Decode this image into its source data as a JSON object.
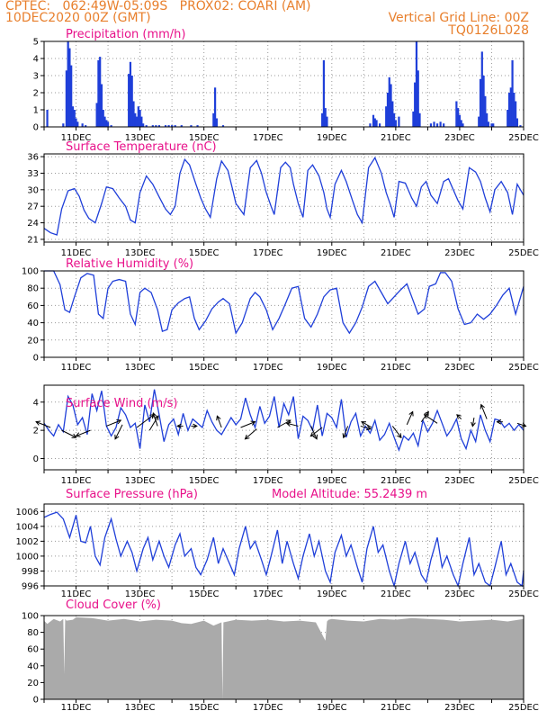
{
  "header": {
    "line1": "CPTEC:   062:49W-05:09S   PROX02: COARI (AM)",
    "line2": "10DEC2020 00Z (GMT)",
    "right1": "Vertical Grid Line: 00Z",
    "right2": "TQ0126L028"
  },
  "colors": {
    "header": "#e87f2c",
    "title": "#e8118a",
    "line": "#1f3fd9",
    "bar": "#1f3fd9",
    "cloud": "#aaaaaa",
    "grid": "#999999"
  },
  "x_ticks": [
    "11DEC",
    "13DEC",
    "15DEC",
    "17DEC",
    "19DEC",
    "21DEC",
    "23DEC",
    "25DEC"
  ],
  "chart_data": [
    {
      "id": "precip",
      "type": "bar",
      "title": "Precipitation (mm/h)",
      "ylim": [
        0,
        5
      ],
      "yticks": [
        0,
        1,
        2,
        3,
        4,
        5
      ],
      "grid": true,
      "x": [
        10.1,
        10.6,
        10.7,
        10.75,
        10.8,
        10.85,
        10.9,
        10.95,
        11.0,
        11.05,
        11.2,
        11.3,
        11.65,
        11.7,
        11.75,
        11.8,
        11.85,
        11.9,
        11.95,
        12.0,
        12.1,
        12.65,
        12.7,
        12.75,
        12.8,
        12.85,
        12.9,
        12.95,
        13.0,
        13.05,
        13.1,
        13.2,
        13.4,
        13.5,
        13.6,
        13.8,
        13.9,
        14.0,
        14.1,
        14.3,
        14.6,
        14.8,
        15.3,
        15.35,
        15.4,
        15.6,
        18.7,
        18.75,
        18.8,
        18.85,
        20.2,
        20.3,
        20.35,
        20.4,
        20.5,
        20.7,
        20.75,
        20.8,
        20.85,
        20.9,
        20.95,
        21.0,
        21.1,
        21.55,
        21.6,
        21.65,
        21.7,
        21.75,
        22.1,
        22.2,
        22.3,
        22.4,
        22.5,
        22.9,
        22.95,
        23.0,
        23.05,
        23.1,
        23.6,
        23.65,
        23.7,
        23.75,
        23.8,
        23.85,
        23.9,
        24.0,
        24.05,
        24.5,
        24.55,
        24.6,
        24.65,
        24.7,
        24.75,
        24.8,
        24.9
      ],
      "values": [
        1.0,
        0.2,
        3.3,
        5.0,
        4.6,
        3.6,
        1.2,
        1.0,
        0.5,
        0.3,
        0.2,
        0.1,
        1.4,
        3.9,
        4.1,
        2.5,
        1.0,
        0.6,
        0.4,
        0.3,
        0.1,
        3.1,
        3.8,
        3.0,
        1.5,
        0.8,
        0.6,
        1.2,
        1.0,
        0.6,
        0.2,
        0.1,
        0.1,
        0.1,
        0.1,
        0.1,
        0.1,
        0.1,
        0.1,
        0.1,
        0.1,
        0.1,
        0.8,
        2.3,
        0.5,
        0.1,
        0.8,
        3.9,
        1.1,
        0.6,
        0.2,
        0.7,
        0.5,
        0.4,
        0.2,
        1.2,
        2.0,
        2.9,
        2.5,
        1.5,
        0.8,
        0.4,
        0.6,
        0.9,
        2.6,
        5.0,
        3.3,
        0.8,
        0.2,
        0.3,
        0.2,
        0.3,
        0.2,
        1.5,
        1.1,
        0.7,
        0.4,
        0.2,
        0.6,
        2.8,
        4.4,
        3.0,
        1.8,
        0.8,
        0.3,
        0.2,
        0.2,
        1.0,
        2.0,
        2.3,
        3.9,
        2.0,
        1.5,
        0.5,
        0.1
      ]
    },
    {
      "id": "temp",
      "type": "line",
      "title": "Surface Temperature (nC)",
      "ylim": [
        20.5,
        36.5
      ],
      "yticks": [
        21,
        24,
        27,
        30,
        33,
        36
      ],
      "grid": true,
      "x": [
        10.0,
        10.2,
        10.4,
        10.55,
        10.75,
        10.95,
        11.1,
        11.25,
        11.4,
        11.6,
        11.8,
        11.95,
        12.15,
        12.35,
        12.55,
        12.7,
        12.85,
        13.0,
        13.2,
        13.4,
        13.6,
        13.8,
        13.95,
        14.1,
        14.25,
        14.4,
        14.55,
        14.75,
        14.9,
        15.05,
        15.2,
        15.4,
        15.55,
        15.75,
        15.9,
        16.0,
        16.25,
        16.45,
        16.65,
        16.8,
        16.95,
        17.1,
        17.2,
        17.4,
        17.55,
        17.7,
        17.8,
        17.95,
        18.1,
        18.25,
        18.4,
        18.6,
        18.75,
        18.85,
        18.95,
        19.1,
        19.3,
        19.45,
        19.65,
        19.8,
        19.95,
        20.15,
        20.35,
        20.55,
        20.7,
        20.85,
        20.95,
        21.1,
        21.3,
        21.5,
        21.65,
        21.8,
        21.95,
        22.1,
        22.3,
        22.5,
        22.65,
        22.8,
        22.95,
        23.1,
        23.3,
        23.5,
        23.65,
        23.8,
        23.95,
        24.1,
        24.3,
        24.5,
        24.65,
        24.8,
        25.0
      ],
      "values": [
        23.0,
        22.2,
        21.8,
        26.5,
        29.8,
        30.2,
        28.8,
        26.3,
        24.8,
        24.0,
        27.5,
        30.5,
        30.2,
        28.5,
        27.0,
        24.5,
        24.0,
        29.5,
        32.5,
        31.0,
        28.7,
        26.5,
        25.5,
        27.0,
        33.0,
        35.5,
        34.5,
        31.0,
        28.5,
        26.5,
        25.0,
        32.0,
        35.2,
        33.5,
        30.0,
        27.5,
        25.5,
        34.0,
        35.3,
        33.0,
        29.5,
        27.0,
        25.5,
        34.0,
        35.0,
        34.0,
        31.0,
        27.5,
        25.0,
        33.5,
        34.5,
        32.5,
        29.5,
        26.5,
        25.0,
        31.0,
        33.5,
        31.5,
        28.0,
        25.5,
        24.0,
        34.0,
        35.8,
        33.0,
        29.5,
        27.0,
        25.0,
        31.5,
        31.2,
        28.5,
        27.0,
        30.5,
        31.5,
        29.0,
        27.5,
        31.5,
        32.0,
        30.0,
        28.0,
        26.5,
        34.0,
        33.2,
        31.5,
        28.5,
        26.0,
        30.0,
        31.5,
        29.5,
        25.5,
        31.0,
        29.0
      ]
    },
    {
      "id": "rh",
      "type": "line",
      "title": "Relative Humidity (%)",
      "ylim": [
        0,
        100
      ],
      "yticks": [
        0,
        20,
        40,
        60,
        80,
        100
      ],
      "grid": true,
      "x": [
        10.0,
        10.3,
        10.5,
        10.65,
        10.8,
        10.95,
        11.15,
        11.35,
        11.55,
        11.7,
        11.85,
        12.0,
        12.15,
        12.35,
        12.55,
        12.7,
        12.85,
        13.0,
        13.15,
        13.35,
        13.55,
        13.7,
        13.85,
        14.0,
        14.2,
        14.4,
        14.55,
        14.7,
        14.85,
        15.05,
        15.25,
        15.45,
        15.6,
        15.8,
        16.0,
        16.2,
        16.45,
        16.6,
        16.75,
        16.95,
        17.15,
        17.35,
        17.55,
        17.75,
        17.95,
        18.15,
        18.35,
        18.55,
        18.75,
        18.95,
        19.15,
        19.35,
        19.55,
        19.75,
        19.95,
        20.15,
        20.35,
        20.55,
        20.75,
        20.95,
        21.15,
        21.35,
        21.5,
        21.7,
        21.9,
        22.05,
        22.25,
        22.4,
        22.55,
        22.75,
        22.95,
        23.15,
        23.35,
        23.55,
        23.75,
        23.95,
        24.15,
        24.35,
        24.55,
        24.75,
        25.0
      ],
      "values": [
        100,
        100,
        84,
        55,
        52,
        70,
        92,
        97,
        95,
        50,
        45,
        80,
        88,
        90,
        88,
        50,
        38,
        75,
        80,
        75,
        55,
        30,
        32,
        55,
        63,
        68,
        70,
        45,
        32,
        42,
        56,
        64,
        68,
        62,
        28,
        40,
        68,
        75,
        70,
        55,
        32,
        45,
        62,
        80,
        82,
        45,
        35,
        50,
        70,
        78,
        80,
        40,
        28,
        40,
        58,
        82,
        88,
        75,
        62,
        70,
        78,
        85,
        70,
        50,
        56,
        82,
        85,
        98,
        98,
        88,
        56,
        38,
        40,
        50,
        44,
        50,
        60,
        72,
        80,
        50,
        82
      ]
    },
    {
      "id": "wind",
      "type": "line",
      "title": "Surface Wind (m/s)",
      "ylim": [
        -0.8,
        5.2
      ],
      "yticks": [
        0,
        2,
        4
      ],
      "grid": true,
      "x": [
        10.0,
        10.15,
        10.3,
        10.45,
        10.6,
        10.75,
        10.9,
        11.05,
        11.2,
        11.35,
        11.5,
        11.65,
        11.8,
        11.95,
        12.1,
        12.25,
        12.4,
        12.55,
        12.7,
        12.85,
        13.0,
        13.15,
        13.3,
        13.45,
        13.6,
        13.75,
        13.9,
        14.05,
        14.2,
        14.35,
        14.5,
        14.65,
        14.8,
        14.95,
        15.1,
        15.25,
        15.4,
        15.55,
        15.7,
        15.85,
        16.0,
        16.15,
        16.3,
        16.45,
        16.6,
        16.75,
        16.9,
        17.05,
        17.2,
        17.35,
        17.5,
        17.65,
        17.8,
        17.95,
        18.1,
        18.25,
        18.4,
        18.55,
        18.7,
        18.85,
        19.0,
        19.15,
        19.3,
        19.45,
        19.6,
        19.75,
        19.9,
        20.05,
        20.2,
        20.35,
        20.5,
        20.65,
        20.8,
        20.95,
        21.1,
        21.25,
        21.4,
        21.55,
        21.7,
        21.85,
        22.0,
        22.15,
        22.3,
        22.45,
        22.6,
        22.75,
        22.9,
        23.05,
        23.2,
        23.35,
        23.5,
        23.65,
        23.8,
        23.95,
        24.1,
        24.25,
        24.4,
        24.55,
        24.7,
        24.85,
        25.0
      ],
      "values": [
        2.5,
        2.0,
        1.6,
        2.4,
        1.9,
        4.4,
        3.8,
        2.4,
        2.9,
        1.7,
        4.6,
        3.4,
        4.8,
        2.3,
        1.6,
        2.2,
        3.6,
        3.1,
        2.2,
        2.5,
        0.7,
        3.8,
        2.6,
        4.9,
        3.1,
        1.2,
        2.4,
        2.8,
        1.7,
        3.2,
        2.0,
        2.8,
        2.5,
        2.2,
        3.4,
        2.6,
        2.0,
        1.7,
        2.3,
        2.9,
        2.4,
        2.8,
        4.3,
        3.1,
        2.2,
        3.7,
        2.5,
        3.0,
        4.4,
        2.2,
        3.9,
        3.1,
        4.4,
        1.4,
        3.0,
        2.7,
        2.0,
        3.8,
        1.6,
        3.2,
        2.9,
        2.2,
        4.2,
        1.5,
        2.6,
        3.2,
        1.6,
        2.3,
        1.8,
        2.7,
        1.3,
        1.7,
        2.5,
        1.5,
        0.6,
        1.6,
        1.3,
        1.8,
        0.9,
        2.7,
        1.9,
        2.5,
        3.4,
        2.5,
        1.6,
        2.1,
        2.8,
        1.4,
        0.7,
        2.0,
        1.2,
        3.1,
        2.0,
        1.2,
        2.8,
        2.7,
        2.2,
        2.5,
        2.0,
        2.4,
        2.0
      ],
      "arrows": [
        {
          "x": 10.2,
          "y": 2.2,
          "u": -1.0,
          "v": 0.4
        },
        {
          "x": 10.55,
          "y": 2.0,
          "u": 1.0,
          "v": -0.5
        },
        {
          "x": 11.45,
          "y": 2.0,
          "u": -1.0,
          "v": -0.4
        },
        {
          "x": 11.95,
          "y": 2.3,
          "u": 1.0,
          "v": 0.4
        },
        {
          "x": 12.45,
          "y": 2.4,
          "u": -0.5,
          "v": -1.0
        },
        {
          "x": 12.9,
          "y": 2.2,
          "u": 1.2,
          "v": 0.9
        },
        {
          "x": 13.3,
          "y": 2.0,
          "u": 0.6,
          "v": 1.0
        },
        {
          "x": 13.55,
          "y": 2.3,
          "u": -0.3,
          "v": 0.9
        },
        {
          "x": 14.35,
          "y": 2.3,
          "u": -0.4,
          "v": 0.0
        },
        {
          "x": 14.6,
          "y": 2.3,
          "u": 0.4,
          "v": 0.0
        },
        {
          "x": 15.55,
          "y": 2.2,
          "u": -0.3,
          "v": 0.8
        },
        {
          "x": 16.15,
          "y": 2.2,
          "u": 1.0,
          "v": 0.4
        },
        {
          "x": 16.65,
          "y": 2.1,
          "u": -0.8,
          "v": -0.7
        },
        {
          "x": 17.3,
          "y": 2.2,
          "u": 0.9,
          "v": 0.5
        },
        {
          "x": 17.95,
          "y": 2.3,
          "u": -0.8,
          "v": 0.2
        },
        {
          "x": 18.35,
          "y": 2.3,
          "u": 0.4,
          "v": -0.9
        },
        {
          "x": 18.7,
          "y": 2.2,
          "u": -0.8,
          "v": -0.6
        },
        {
          "x": 19.5,
          "y": 2.3,
          "u": -0.3,
          "v": -0.8
        },
        {
          "x": 19.9,
          "y": 2.3,
          "u": 0.7,
          "v": -0.2
        },
        {
          "x": 20.25,
          "y": 2.2,
          "u": -0.7,
          "v": 0.4
        },
        {
          "x": 20.9,
          "y": 2.3,
          "u": 0.6,
          "v": -0.8
        },
        {
          "x": 21.35,
          "y": 2.4,
          "u": 0.4,
          "v": 0.9
        },
        {
          "x": 21.8,
          "y": 2.6,
          "u": 0.5,
          "v": 0.7
        },
        {
          "x": 22.3,
          "y": 2.5,
          "u": -0.9,
          "v": 0.6
        },
        {
          "x": 23.05,
          "y": 2.8,
          "u": -0.3,
          "v": 0.3
        },
        {
          "x": 23.45,
          "y": 2.9,
          "u": -0.1,
          "v": -0.6
        },
        {
          "x": 23.85,
          "y": 2.8,
          "u": -0.4,
          "v": 1.0
        },
        {
          "x": 24.35,
          "y": 2.6,
          "u": -0.4,
          "v": 0.0
        },
        {
          "x": 24.8,
          "y": 2.5,
          "u": 0.6,
          "v": -0.2
        }
      ]
    },
    {
      "id": "pres",
      "type": "line",
      "title": "Surface Pressure (hPa)",
      "subtitle": "Model Altitude: 55.2439 m",
      "ylim": [
        996,
        1007
      ],
      "yticks": [
        996,
        998,
        1000,
        1002,
        1004,
        1006
      ],
      "grid": true,
      "x": [
        10.0,
        10.2,
        10.4,
        10.6,
        10.8,
        11.0,
        11.15,
        11.3,
        11.45,
        11.6,
        11.75,
        11.9,
        12.1,
        12.25,
        12.4,
        12.6,
        12.75,
        12.9,
        13.1,
        13.25,
        13.4,
        13.6,
        13.75,
        13.9,
        14.1,
        14.25,
        14.4,
        14.6,
        14.75,
        14.9,
        15.1,
        15.3,
        15.45,
        15.6,
        15.8,
        15.95,
        16.1,
        16.3,
        16.45,
        16.6,
        16.8,
        16.95,
        17.1,
        17.3,
        17.45,
        17.6,
        17.8,
        17.95,
        18.1,
        18.3,
        18.45,
        18.6,
        18.8,
        18.95,
        19.1,
        19.3,
        19.45,
        19.6,
        19.8,
        19.95,
        20.1,
        20.3,
        20.45,
        20.6,
        20.8,
        20.95,
        21.1,
        21.3,
        21.45,
        21.6,
        21.8,
        21.95,
        22.1,
        22.3,
        22.45,
        22.6,
        22.8,
        22.95,
        23.1,
        23.3,
        23.45,
        23.6,
        23.8,
        23.95,
        24.1,
        24.3,
        24.45,
        24.6,
        24.8,
        24.95,
        25.0
      ],
      "values": [
        1005.2,
        1005.6,
        1005.9,
        1005.0,
        1002.5,
        1005.5,
        1002.0,
        1001.8,
        1004.0,
        1000.0,
        998.8,
        1002.5,
        1005.0,
        1002.3,
        1000.0,
        1002.0,
        1000.5,
        998.0,
        1001.0,
        1002.5,
        999.5,
        1002.0,
        1000.0,
        998.5,
        1001.5,
        1003.0,
        1000.0,
        1001.0,
        998.5,
        997.5,
        999.5,
        1002.5,
        999.0,
        1001.0,
        999.0,
        997.5,
        1001.0,
        1004.0,
        1001.0,
        1002.0,
        999.5,
        997.5,
        1000.0,
        1003.5,
        999.0,
        1002.0,
        999.0,
        997.0,
        1000.0,
        1003.0,
        1000.0,
        1002.0,
        998.0,
        996.5,
        1000.5,
        1002.8,
        1000.0,
        1001.5,
        998.5,
        996.5,
        1001.0,
        1004.0,
        1000.5,
        1001.5,
        998.0,
        996.0,
        999.0,
        1002.0,
        999.0,
        1000.5,
        997.5,
        996.5,
        999.5,
        1002.5,
        998.5,
        1000.0,
        997.5,
        996.0,
        999.0,
        1002.5,
        997.5,
        999.0,
        996.5,
        996.0,
        998.5,
        1002.0,
        997.5,
        999.0,
        996.5,
        996.0,
        998.0
      ]
    },
    {
      "id": "cloud",
      "type": "area",
      "title": "Cloud Cover (%)",
      "ylim": [
        0,
        100
      ],
      "yticks": [
        0,
        20,
        40,
        60,
        80,
        100
      ],
      "grid": true,
      "x": [
        10.0,
        10.1,
        10.3,
        10.5,
        10.6,
        10.63,
        10.66,
        10.7,
        10.9,
        11.0,
        11.5,
        12.0,
        12.5,
        13.0,
        13.5,
        14.0,
        14.3,
        14.6,
        15.0,
        15.3,
        15.55,
        15.58,
        15.61,
        16.0,
        16.5,
        17.0,
        17.5,
        18.0,
        18.5,
        18.8,
        18.85,
        18.9,
        19.0,
        19.5,
        20.0,
        20.5,
        21.0,
        21.5,
        22.0,
        22.5,
        23.0,
        23.5,
        24.0,
        24.5,
        25.0
      ],
      "values": [
        94,
        90,
        96,
        93,
        96,
        30,
        96,
        94,
        95,
        98,
        97,
        94,
        96,
        93,
        95,
        94,
        91,
        90,
        94,
        88,
        92,
        0,
        92,
        95,
        94,
        95,
        93,
        94,
        92,
        70,
        93,
        95,
        96,
        94,
        93,
        96,
        95,
        97,
        96,
        95,
        93,
        94,
        95,
        93,
        96
      ]
    }
  ]
}
